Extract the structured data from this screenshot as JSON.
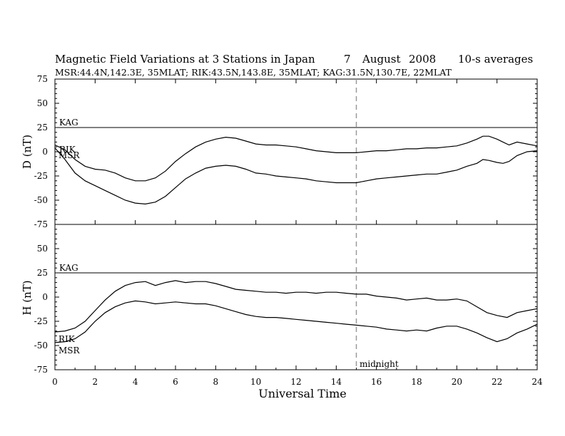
{
  "header": {
    "title": "Magnetic Field Variations at 3 Stations in Japan",
    "date_day": "7",
    "date_month": "August",
    "date_year": "2008",
    "averaging": "10-s averages",
    "stations_line": "MSR:44.4N,142.3E, 35MLAT;  RIK:43.5N,143.8E, 35MLAT;  KAG:31.5N,130.7E, 22MLAT"
  },
  "chart_data": [
    {
      "type": "line",
      "panel": "top",
      "ylabel": "D (nT)",
      "ylim": [
        -75,
        75
      ],
      "yticks": [
        75,
        50,
        25,
        0,
        -25,
        -50,
        -75
      ],
      "xlim": [
        0,
        24
      ],
      "xticks": [
        0,
        2,
        4,
        6,
        8,
        10,
        12,
        14,
        16,
        18,
        20,
        22,
        24
      ],
      "grid": false,
      "reference_line": {
        "name": "KAG",
        "y": 25
      },
      "midnight_marker": {
        "x": 15,
        "style": "dashed"
      },
      "series": [
        {
          "name": "RIK",
          "x": [
            0,
            0.5,
            1,
            1.5,
            2,
            2.5,
            3,
            3.5,
            4,
            4.5,
            5,
            5.5,
            6,
            6.5,
            7,
            7.5,
            8,
            8.5,
            9,
            9.5,
            10,
            10.5,
            11,
            11.5,
            12,
            12.5,
            13,
            13.5,
            14,
            14.5,
            15,
            15.5,
            16,
            16.5,
            17,
            17.5,
            18,
            18.5,
            19,
            19.5,
            20,
            20.5,
            21,
            21.3,
            21.6,
            22,
            22.3,
            22.6,
            23,
            23.5,
            24
          ],
          "values": [
            7,
            2,
            -8,
            -15,
            -18,
            -19,
            -22,
            -27,
            -30,
            -30,
            -27,
            -20,
            -10,
            -2,
            5,
            10,
            13,
            15,
            14,
            11,
            8,
            7,
            7,
            6,
            5,
            3,
            1,
            0,
            -1,
            -1,
            -1,
            0,
            1,
            1,
            2,
            3,
            3,
            4,
            4,
            5,
            6,
            9,
            13,
            16,
            16,
            13,
            10,
            7,
            10,
            8,
            6
          ]
        },
        {
          "name": "MSR",
          "x": [
            0,
            0.5,
            1,
            1.5,
            2,
            2.5,
            3,
            3.5,
            4,
            4.5,
            5,
            5.5,
            6,
            6.5,
            7,
            7.5,
            8,
            8.5,
            9,
            9.5,
            10,
            10.5,
            11,
            11.5,
            12,
            12.5,
            13,
            13.5,
            14,
            14.5,
            15,
            15.5,
            16,
            16.5,
            17,
            17.5,
            18,
            18.5,
            19,
            19.5,
            20,
            20.5,
            21,
            21.3,
            21.6,
            22,
            22.3,
            22.6,
            23,
            23.5,
            24
          ],
          "values": [
            4,
            -8,
            -22,
            -30,
            -35,
            -40,
            -45,
            -50,
            -53,
            -54,
            -52,
            -46,
            -37,
            -28,
            -22,
            -17,
            -15,
            -14,
            -15,
            -18,
            -22,
            -23,
            -25,
            -26,
            -27,
            -28,
            -30,
            -31,
            -32,
            -32,
            -32,
            -30,
            -28,
            -27,
            -26,
            -25,
            -24,
            -23,
            -23,
            -21,
            -19,
            -15,
            -12,
            -8,
            -9,
            -11,
            -12,
            -10,
            -4,
            0,
            1
          ]
        }
      ],
      "curve_labels": [
        "RIK",
        "MSR"
      ]
    },
    {
      "type": "line",
      "panel": "bottom",
      "ylabel": "H (nT)",
      "xlabel": "Universal Time",
      "ylim": [
        -75,
        75
      ],
      "yticks": [
        50,
        25,
        0,
        -25,
        -50,
        -75
      ],
      "xlim": [
        0,
        24
      ],
      "xticks": [
        0,
        2,
        4,
        6,
        8,
        10,
        12,
        14,
        16,
        18,
        20,
        22,
        24
      ],
      "grid": false,
      "reference_line": {
        "name": "KAG",
        "y": 25
      },
      "midnight_marker": {
        "x": 15,
        "style": "dashed",
        "label": "midnight"
      },
      "series": [
        {
          "name": "RIK",
          "x": [
            0,
            0.5,
            1,
            1.5,
            2,
            2.5,
            3,
            3.5,
            4,
            4.5,
            5,
            5.5,
            6,
            6.5,
            7,
            7.5,
            8,
            8.5,
            9,
            9.5,
            10,
            10.5,
            11,
            11.5,
            12,
            12.5,
            13,
            13.5,
            14,
            14.5,
            15,
            15.5,
            16,
            16.5,
            17,
            17.5,
            18,
            18.5,
            19,
            19.5,
            20,
            20.5,
            21,
            21.5,
            22,
            22.5,
            23,
            23.5,
            24
          ],
          "values": [
            -36,
            -35,
            -32,
            -25,
            -14,
            -3,
            6,
            12,
            15,
            16,
            12,
            15,
            17,
            15,
            16,
            16,
            14,
            11,
            8,
            7,
            6,
            5,
            5,
            4,
            5,
            5,
            4,
            5,
            5,
            4,
            3,
            3,
            1,
            0,
            -1,
            -3,
            -2,
            -1,
            -3,
            -3,
            -2,
            -4,
            -10,
            -16,
            -19,
            -21,
            -16,
            -14,
            -12
          ]
        },
        {
          "name": "MSR",
          "x": [
            0,
            0.5,
            1,
            1.5,
            2,
            2.5,
            3,
            3.5,
            4,
            4.5,
            5,
            5.5,
            6,
            6.5,
            7,
            7.5,
            8,
            8.5,
            9,
            9.5,
            10,
            10.5,
            11,
            11.5,
            12,
            12.5,
            13,
            13.5,
            14,
            14.5,
            15,
            15.5,
            16,
            16.5,
            17,
            17.5,
            18,
            18.5,
            19,
            19.5,
            20,
            20.5,
            21,
            21.5,
            22,
            22.5,
            23,
            23.5,
            24
          ],
          "values": [
            -47,
            -46,
            -43,
            -36,
            -25,
            -16,
            -10,
            -6,
            -4,
            -5,
            -7,
            -6,
            -5,
            -6,
            -7,
            -7,
            -9,
            -12,
            -15,
            -18,
            -20,
            -21,
            -21,
            -22,
            -23,
            -24,
            -25,
            -26,
            -27,
            -28,
            -29,
            -30,
            -31,
            -33,
            -34,
            -35,
            -34,
            -35,
            -32,
            -30,
            -30,
            -33,
            -37,
            -42,
            -46,
            -43,
            -37,
            -33,
            -28
          ]
        }
      ],
      "curve_labels": [
        "RIK",
        "MSR"
      ]
    }
  ]
}
